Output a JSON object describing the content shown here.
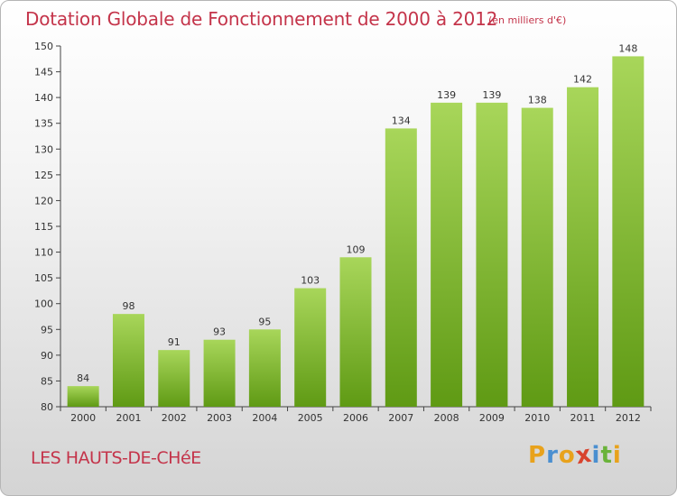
{
  "header": {
    "title": "Dotation Globale de Fonctionnement de 2000 à 2012",
    "unit": "(en milliers d'€)"
  },
  "footer": {
    "commune": "LES HAUTS-DE-CHéE",
    "logo_letters": [
      "P",
      "r",
      "o",
      "x",
      "i",
      "t",
      "i"
    ],
    "logo_colors": [
      "#e8a21c",
      "#4a8fd0",
      "#e8a21c",
      "#d8432e",
      "#4a8fd0",
      "#6ab33a",
      "#e8a21c"
    ]
  },
  "colors": {
    "title": "#c4344a",
    "bar_light": "#a8d65a",
    "bar_dark": "#5f9a14",
    "axis": "#444444"
  },
  "chart_data": {
    "type": "bar",
    "categories": [
      "2000",
      "2001",
      "2002",
      "2003",
      "2004",
      "2005",
      "2006",
      "2007",
      "2008",
      "2009",
      "2010",
      "2011",
      "2012"
    ],
    "values": [
      84,
      98,
      91,
      93,
      95,
      103,
      109,
      134,
      139,
      139,
      138,
      142,
      148
    ],
    "ylim": [
      80,
      150
    ],
    "yticks": [
      80,
      85,
      90,
      95,
      100,
      105,
      110,
      115,
      120,
      125,
      130,
      135,
      140,
      145,
      150
    ],
    "title": "Dotation Globale de Fonctionnement de 2000 à 2012",
    "xlabel": "",
    "ylabel": "",
    "grid": false
  }
}
